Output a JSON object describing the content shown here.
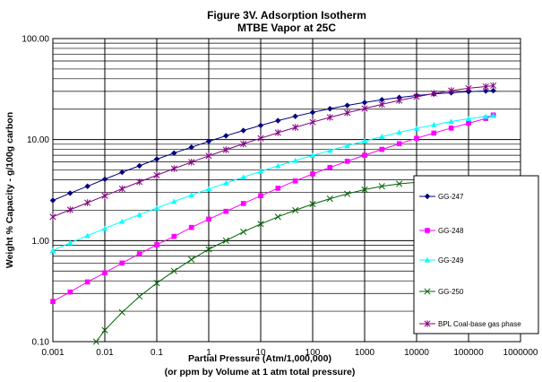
{
  "chart_data": {
    "type": "line",
    "title": "Figure 3V. Adsorption Isotherm",
    "subtitle": "MTBE Vapor at 25C",
    "xlabel": "Partial Pressure (Atm/1,000,000)",
    "xlabel2": "(or ppm by Volume at 1 atm total pressure)",
    "ylabel": "Weight % Capacity - g/100g carbon",
    "x_scale": "log",
    "y_scale": "log",
    "xlim": [
      0.001,
      1000000
    ],
    "ylim": [
      0.1,
      100
    ],
    "x_ticks": [
      "0.001",
      "0.01",
      "0.1",
      "1",
      "10",
      "100",
      "1000",
      "10000",
      "100000",
      "1000000"
    ],
    "y_ticks": [
      "0.10",
      "1.00",
      "10.00",
      "100.00"
    ],
    "grid": true,
    "legend_position": "right",
    "series": [
      {
        "name": "GG-247",
        "color": "#000080",
        "marker": "diamond",
        "x": [
          0.001,
          0.00215,
          0.00464,
          0.01,
          0.0215,
          0.0464,
          0.1,
          0.215,
          0.464,
          1,
          2.15,
          4.64,
          10,
          21.5,
          46.4,
          100,
          215,
          464,
          1000,
          2150,
          4640,
          10000,
          21500,
          46400,
          100000,
          215000,
          300000
        ],
        "y": [
          2.5,
          2.95,
          3.45,
          4.05,
          4.75,
          5.5,
          6.4,
          7.35,
          8.4,
          9.6,
          10.9,
          12.3,
          13.8,
          15.4,
          17.0,
          18.6,
          20.2,
          21.8,
          23.3,
          24.8,
          26.1,
          27.3,
          28.3,
          29.1,
          29.8,
          30.3,
          30.5
        ]
      },
      {
        "name": "GG-248",
        "color": "#FF00FF",
        "marker": "square",
        "x": [
          0.001,
          0.00215,
          0.00464,
          0.01,
          0.0215,
          0.0464,
          0.1,
          0.215,
          0.464,
          1,
          2.15,
          4.64,
          10,
          21.5,
          46.4,
          100,
          215,
          464,
          1000,
          2150,
          4640,
          10000,
          21500,
          46400,
          100000,
          215000,
          300000
        ],
        "y": [
          0.25,
          0.31,
          0.39,
          0.48,
          0.6,
          0.74,
          0.91,
          1.1,
          1.35,
          1.63,
          1.95,
          2.33,
          2.78,
          3.3,
          3.9,
          4.57,
          5.3,
          6.1,
          7.0,
          8.0,
          9.1,
          10.3,
          11.6,
          13.0,
          14.5,
          16.2,
          17.5
        ]
      },
      {
        "name": "GG-249",
        "color": "#00FFFF",
        "marker": "triangle",
        "x": [
          0.001,
          0.00215,
          0.00464,
          0.01,
          0.0215,
          0.0464,
          0.1,
          0.215,
          0.464,
          1,
          2.15,
          4.64,
          10,
          21.5,
          46.4,
          100,
          215,
          464,
          1000,
          2150,
          4640,
          10000,
          21500,
          46400,
          100000,
          215000,
          300000
        ],
        "y": [
          0.8,
          0.95,
          1.12,
          1.32,
          1.55,
          1.81,
          2.1,
          2.44,
          2.82,
          3.25,
          3.72,
          4.25,
          4.84,
          5.5,
          6.2,
          6.97,
          7.8,
          8.7,
          9.65,
          10.7,
          11.8,
          12.9,
          14.0,
          15.1,
          16.1,
          16.9,
          17.3
        ]
      },
      {
        "name": "GG-250",
        "color": "#006400",
        "marker": "x",
        "x": [
          0.00683,
          0.01,
          0.0215,
          0.0464,
          0.1,
          0.215,
          0.464,
          1,
          2.15,
          4.64,
          10,
          21.5,
          46.4,
          100,
          215,
          464,
          1000,
          2150,
          4640,
          10000,
          21500,
          46400,
          100000,
          215000,
          300000
        ],
        "y": [
          0.1,
          0.13,
          0.195,
          0.28,
          0.38,
          0.5,
          0.65,
          0.82,
          1.0,
          1.22,
          1.46,
          1.72,
          2.0,
          2.3,
          2.6,
          2.9,
          3.2,
          3.45,
          3.65,
          3.78,
          3.82,
          3.78,
          3.65,
          3.48,
          3.35
        ]
      },
      {
        "name": "BPL Coal-base gas phase",
        "color": "#800080",
        "marker": "star",
        "x": [
          0.001,
          0.00215,
          0.00464,
          0.01,
          0.0215,
          0.0464,
          0.1,
          0.215,
          0.464,
          1,
          2.15,
          4.64,
          10,
          21.5,
          46.4,
          100,
          215,
          464,
          1000,
          2150,
          4640,
          10000,
          21500,
          46400,
          100000,
          215000,
          300000
        ],
        "y": [
          1.72,
          2.02,
          2.37,
          2.78,
          3.26,
          3.81,
          4.44,
          5.16,
          5.98,
          6.9,
          7.93,
          9.07,
          10.3,
          11.7,
          13.2,
          14.9,
          16.6,
          18.4,
          20.3,
          22.3,
          24.4,
          26.5,
          28.6,
          30.5,
          32.2,
          33.5,
          34.2
        ]
      }
    ]
  }
}
